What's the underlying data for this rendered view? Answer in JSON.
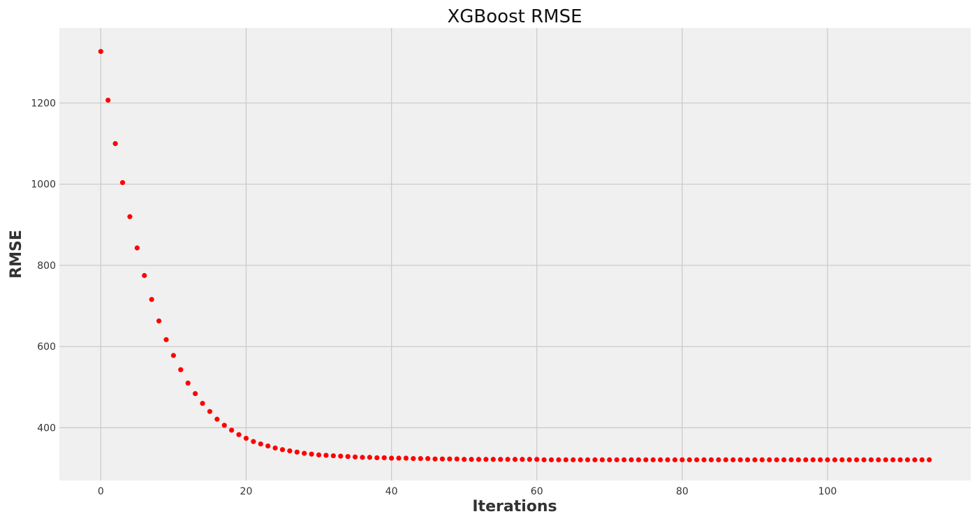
{
  "chart_data": {
    "type": "scatter",
    "title": "XGBoost RMSE",
    "xlabel": "Iterations",
    "ylabel": "RMSE",
    "xlim": [
      -5.7,
      119.7
    ],
    "ylim": [
      270,
      1385
    ],
    "xticks": [
      0,
      20,
      40,
      60,
      80,
      100
    ],
    "yticks": [
      400,
      600,
      800,
      1000,
      1200
    ],
    "grid": true,
    "legend": "none",
    "background_color": "#f0f0f0",
    "grid_color": "#cbcbcb",
    "marker_color": "#ff0000",
    "series": [
      {
        "x": [
          0,
          1,
          2,
          3,
          4,
          5,
          6,
          7,
          8,
          9,
          10,
          11,
          12,
          13,
          14,
          15,
          16,
          17,
          18,
          19,
          20,
          21,
          22,
          23,
          24,
          25,
          26,
          27,
          28,
          29,
          30,
          31,
          32,
          33,
          34,
          35,
          36,
          37,
          38,
          39,
          40,
          41,
          42,
          43,
          44,
          45,
          46,
          47,
          48,
          49,
          50,
          51,
          52,
          53,
          54,
          55,
          56,
          57,
          58,
          59,
          60,
          61,
          62,
          63,
          64,
          65,
          66,
          67,
          68,
          69,
          70,
          71,
          72,
          73,
          74,
          75,
          76,
          77,
          78,
          79,
          80,
          81,
          82,
          83,
          84,
          85,
          86,
          87,
          88,
          89,
          90,
          91,
          92,
          93,
          94,
          95,
          96,
          97,
          98,
          99,
          100,
          101,
          102,
          103,
          104,
          105,
          106,
          107,
          108,
          109,
          110,
          111,
          112,
          113,
          114
        ],
        "y": [
          1327,
          1207,
          1100,
          1004,
          920,
          843,
          775,
          716,
          663,
          617,
          578,
          543,
          510,
          484,
          460,
          440,
          421,
          406,
          394,
          383,
          374,
          366,
          360,
          355,
          350,
          346,
          343,
          340,
          337,
          335,
          333,
          332,
          331,
          330,
          329,
          328,
          327,
          327,
          326,
          326,
          325,
          325,
          325,
          324,
          324,
          324,
          323,
          323,
          323,
          323,
          322,
          322,
          322,
          322,
          322,
          322,
          322,
          322,
          322,
          322,
          322,
          321,
          321,
          321,
          321,
          321,
          321,
          321,
          321,
          321,
          321,
          321,
          321,
          321,
          321,
          321,
          321,
          321,
          321,
          321,
          321,
          321,
          321,
          321,
          321,
          321,
          321,
          321,
          321,
          321,
          321,
          321,
          321,
          321,
          321,
          321,
          321,
          321,
          321,
          321,
          321,
          321,
          321,
          321,
          321,
          321,
          321,
          321,
          321,
          321,
          321,
          321,
          321,
          321,
          321
        ]
      }
    ]
  }
}
